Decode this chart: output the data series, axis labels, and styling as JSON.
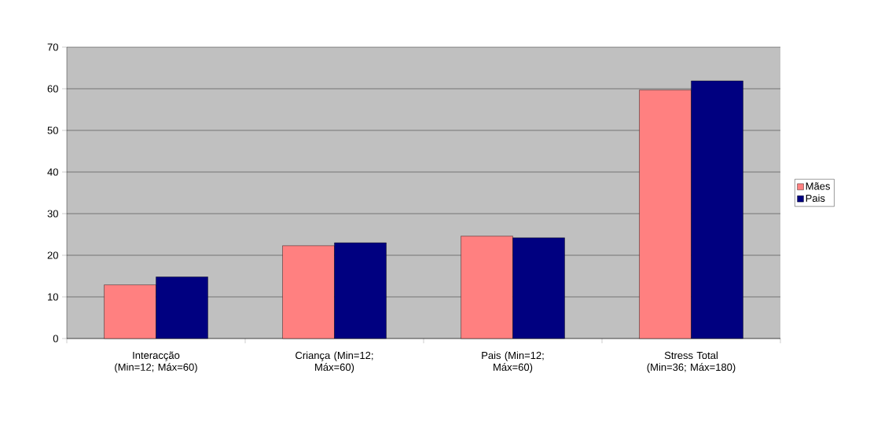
{
  "chart_data": {
    "type": "bar",
    "categories": [
      "Interacção (Min=12; Máx=60)",
      "Criança (Min=12; Máx=60)",
      "Pais (Min=12; Máx=60)",
      "Stress Total (Min=36; Máx=180)"
    ],
    "series": [
      {
        "name": "Mães",
        "color": "#ff8080",
        "values": [
          12.9,
          22.3,
          24.6,
          59.7
        ]
      },
      {
        "name": "Pais",
        "color": "#000080",
        "values": [
          14.8,
          23.0,
          24.2,
          61.9
        ]
      }
    ],
    "ylim": [
      0,
      70
    ],
    "yticks": [
      0,
      10,
      20,
      30,
      40,
      50,
      60,
      70
    ],
    "grid": "y",
    "legend": "right"
  }
}
